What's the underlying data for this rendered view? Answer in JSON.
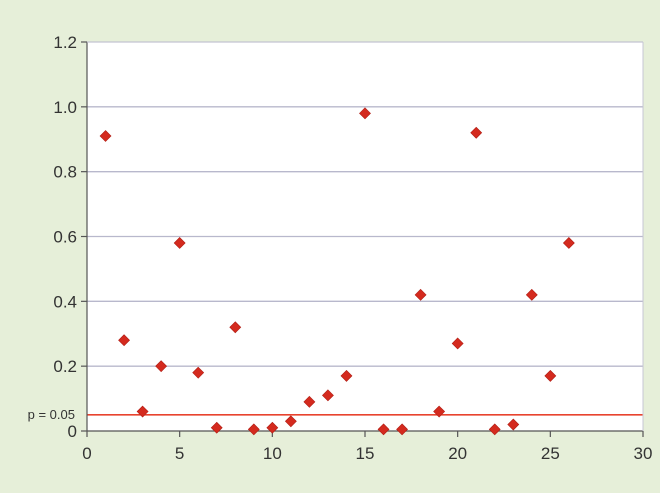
{
  "colors": {
    "background": "#e6efd9",
    "plot_area": "#ffffff",
    "grid": "#b8b8cc",
    "axis": "#555555",
    "marker": "#d42a1e",
    "threshold_line": "#e8432f"
  },
  "chart_data": {
    "type": "scatter",
    "title": "",
    "xlabel": "",
    "ylabel": "",
    "xlim": [
      0,
      30
    ],
    "ylim": [
      0,
      1.2
    ],
    "x_ticks": [
      0,
      5,
      10,
      15,
      20,
      25,
      30
    ],
    "y_ticks": [
      0,
      0.2,
      0.4,
      0.6,
      0.8,
      1.0,
      1.2
    ],
    "y_tick_labels": [
      "0",
      "0.2",
      "0.4",
      "0.6",
      "0.8",
      "1.0",
      "1.2"
    ],
    "grid": true,
    "legend": "none",
    "marker": "diamond",
    "threshold": {
      "value": 0.05,
      "label": "p = 0.05"
    },
    "points": [
      {
        "x": 1,
        "y": 0.91
      },
      {
        "x": 2,
        "y": 0.28
      },
      {
        "x": 3,
        "y": 0.06
      },
      {
        "x": 4,
        "y": 0.2
      },
      {
        "x": 5,
        "y": 0.58
      },
      {
        "x": 6,
        "y": 0.18
      },
      {
        "x": 7,
        "y": 0.01
      },
      {
        "x": 8,
        "y": 0.32
      },
      {
        "x": 9,
        "y": 0.005
      },
      {
        "x": 10,
        "y": 0.01
      },
      {
        "x": 11,
        "y": 0.03
      },
      {
        "x": 12,
        "y": 0.09
      },
      {
        "x": 13,
        "y": 0.11
      },
      {
        "x": 14,
        "y": 0.17
      },
      {
        "x": 15,
        "y": 0.98
      },
      {
        "x": 16,
        "y": 0.005
      },
      {
        "x": 17,
        "y": 0.005
      },
      {
        "x": 18,
        "y": 0.42
      },
      {
        "x": 19,
        "y": 0.06
      },
      {
        "x": 20,
        "y": 0.27
      },
      {
        "x": 21,
        "y": 0.92
      },
      {
        "x": 22,
        "y": 0.005
      },
      {
        "x": 23,
        "y": 0.02
      },
      {
        "x": 24,
        "y": 0.42
      },
      {
        "x": 25,
        "y": 0.17
      },
      {
        "x": 26,
        "y": 0.58
      }
    ]
  }
}
